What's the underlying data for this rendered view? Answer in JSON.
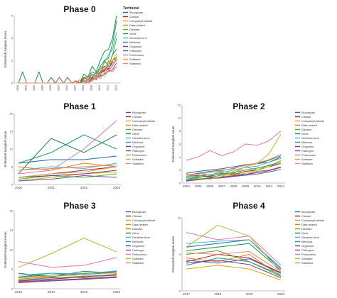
{
  "series_names": [
    "Biologicals",
    "Clinical",
    "Company/Institute",
    "Data related",
    "Disease",
    "Gene",
    "Genetics term",
    "Methods",
    "Organism",
    "Pathogen",
    "Proteomics",
    "Software",
    "Statistics"
  ],
  "series_colors": [
    "#2166ac",
    "#b2182b",
    "#d9a800",
    "#e08214",
    "#4dac26",
    "#238b45",
    "#41b6c4",
    "#1b9e77",
    "#7b3294",
    "#6a51a3",
    "#de77ae",
    "#b8b838",
    "#fb8072"
  ],
  "chart_data": [
    {
      "type": "line",
      "title": "Phase 0",
      "ylabel": "Estimated marginal mean",
      "xlabel": "",
      "legend_title": "Technical",
      "legend_position": "right",
      "x": [
        "1990",
        "1991",
        "1992",
        "1993",
        "1994",
        "1995",
        "1996",
        "1997",
        "1998",
        "1999",
        "2000",
        "2001",
        "2002",
        "2003",
        "2004",
        "2005",
        "2006",
        "2007",
        "2008",
        "2009",
        "2010",
        "2011",
        "2012",
        "2013",
        "2014"
      ],
      "x_ticks_shown": [
        "1990",
        "",
        "1992",
        "",
        "1994",
        "",
        "1996",
        "",
        "1998",
        "",
        "2000",
        "",
        "2002",
        "",
        "2004",
        "",
        "2006",
        "",
        "2008",
        "",
        "2010",
        "",
        "2012",
        "",
        "2014"
      ],
      "ylim": [
        0,
        6
      ],
      "yticks": [
        0,
        2,
        4,
        6
      ],
      "grid": false,
      "series": [
        {
          "name": "Biologicals",
          "values": [
            0,
            0,
            0,
            0,
            0,
            0,
            0,
            0,
            0,
            0,
            0,
            0,
            0,
            0,
            0,
            0,
            0,
            0.3,
            0.4,
            0.5,
            0.8,
            1.2,
            1.5,
            2.5,
            3
          ]
        },
        {
          "name": "Clinical",
          "values": [
            0,
            0,
            0,
            0,
            0,
            0,
            0,
            0,
            0,
            0,
            0,
            0,
            0,
            0,
            0.2,
            0,
            0.5,
            0.3,
            0.8,
            0.6,
            1,
            1.5,
            1.2,
            2,
            2.3
          ]
        },
        {
          "name": "Company/Institute",
          "values": [
            0,
            0,
            0,
            0,
            0,
            0,
            0,
            0,
            0,
            0,
            0,
            0,
            0,
            0,
            0,
            0,
            0.3,
            0.2,
            0.5,
            0.7,
            0.9,
            1,
            1.8,
            2,
            2.6
          ]
        },
        {
          "name": "Data related",
          "values": [
            0,
            0,
            0,
            0,
            0,
            0,
            0,
            0,
            0,
            0,
            0,
            0,
            0,
            0,
            0,
            0.3,
            0,
            0.5,
            0.8,
            0.4,
            1.5,
            1,
            2,
            1.5,
            2.2
          ]
        },
        {
          "name": "Disease",
          "values": [
            0,
            0,
            0,
            0,
            0,
            0,
            0,
            0,
            0,
            0,
            0,
            0,
            0,
            0,
            0,
            0,
            0.2,
            0,
            0.4,
            1,
            0.6,
            2,
            1.5,
            2.5,
            4
          ]
        },
        {
          "name": "Gene",
          "values": [
            0,
            1,
            0,
            0,
            0,
            1,
            0,
            0,
            0.5,
            0,
            0,
            0,
            0.5,
            0,
            0,
            0,
            0.8,
            0.5,
            1.5,
            1,
            2,
            2.8,
            3,
            4,
            6
          ]
        },
        {
          "name": "Genetics term",
          "values": [
            0,
            0,
            0,
            0,
            0,
            0,
            0,
            0,
            0,
            0,
            0,
            0,
            0,
            0,
            0,
            0,
            0,
            0.3,
            0.6,
            0.9,
            1.2,
            1.8,
            2.5,
            3,
            4.5
          ]
        },
        {
          "name": "Methods",
          "values": [
            0,
            0,
            0,
            0,
            0,
            0,
            0,
            0,
            0,
            0,
            0,
            0,
            0,
            0,
            0,
            0,
            0.4,
            0.6,
            1,
            0.8,
            1.5,
            2,
            2.2,
            3.5,
            5.5
          ]
        },
        {
          "name": "Organism",
          "values": [
            0,
            0,
            0,
            0,
            0,
            0,
            0,
            0,
            0,
            0,
            0,
            0,
            0,
            0,
            0,
            0,
            0,
            0,
            0.5,
            0.3,
            0.9,
            1.1,
            1.3,
            1.8,
            2
          ]
        },
        {
          "name": "Pathogen",
          "values": [
            0,
            0,
            0,
            0,
            0,
            0,
            0,
            0,
            0,
            0,
            0.5,
            0,
            0,
            0,
            0,
            0,
            0.2,
            0,
            0.3,
            0.5,
            0.6,
            0.8,
            1,
            1.2,
            1.8
          ]
        },
        {
          "name": "Proteomics",
          "values": [
            0,
            0,
            0,
            0,
            0,
            0,
            0,
            0,
            0,
            0,
            0,
            0,
            0,
            0,
            0,
            0,
            0,
            0.2,
            0.3,
            0.6,
            0.4,
            0.9,
            1.2,
            1,
            1.5
          ]
        },
        {
          "name": "Software",
          "values": [
            0,
            0,
            0,
            0,
            0,
            0,
            0,
            0,
            0,
            0,
            0,
            0,
            0,
            0,
            0,
            0,
            0,
            0,
            0.2,
            0.5,
            0.8,
            0.6,
            1.1,
            1.5,
            2.4
          ]
        },
        {
          "name": "Statistics",
          "values": [
            0,
            0,
            0,
            0,
            0,
            0,
            0,
            0,
            0,
            0,
            0,
            0,
            0,
            0,
            0,
            0,
            0,
            0.3,
            0.2,
            0.4,
            0.9,
            1.3,
            1,
            1.6,
            2.1
          ]
        }
      ]
    },
    {
      "type": "line",
      "title": "Phase 1",
      "ylabel": "Estimated marginal mean",
      "xlabel": "",
      "legend_title": "",
      "legend_position": "right",
      "x": [
        "2000",
        "2001",
        "2002",
        "2003"
      ],
      "x_ticks_shown": [
        "2000",
        "2001",
        "2002",
        "2003"
      ],
      "ylim": [
        0,
        20
      ],
      "yticks": [
        0,
        5,
        10,
        15,
        20
      ],
      "grid": false,
      "series": [
        {
          "name": "Biologicals",
          "values": [
            6,
            7,
            7,
            8
          ]
        },
        {
          "name": "Clinical",
          "values": [
            2,
            3,
            4,
            5
          ]
        },
        {
          "name": "Company/Institute",
          "values": [
            1,
            2,
            3,
            3.5
          ]
        },
        {
          "name": "Data related",
          "values": [
            5,
            4,
            6,
            5
          ]
        },
        {
          "name": "Disease",
          "values": [
            1.5,
            2.5,
            2,
            3
          ]
        },
        {
          "name": "Gene",
          "values": [
            3,
            13,
            9,
            14
          ]
        },
        {
          "name": "Genetics term",
          "values": [
            4,
            5,
            4.5,
            6
          ]
        },
        {
          "name": "Methods",
          "values": [
            6,
            9,
            14,
            10
          ]
        },
        {
          "name": "Organism",
          "values": [
            2,
            2.5,
            3,
            4
          ]
        },
        {
          "name": "Pathogen",
          "values": [
            1,
            1.5,
            2.5,
            2
          ]
        },
        {
          "name": "Proteomics",
          "values": [
            3,
            4,
            10,
            18
          ]
        },
        {
          "name": "Software",
          "values": [
            2,
            3,
            3.5,
            5
          ]
        },
        {
          "name": "Statistics",
          "values": [
            4,
            4.5,
            5,
            5.5
          ]
        }
      ]
    },
    {
      "type": "line",
      "title": "Phase 2",
      "ylabel": "Estimated marginal mean",
      "xlabel": "",
      "legend_title": "",
      "legend_position": "right",
      "x": [
        "2004",
        "2005",
        "2006",
        "2007",
        "2008",
        "2009",
        "2010",
        "2011",
        "2012"
      ],
      "x_ticks_shown": [
        "2004",
        "2005",
        "2006",
        "2007",
        "2008",
        "2009",
        "2010",
        "2011",
        "2012"
      ],
      "ylim": [
        0,
        12
      ],
      "yticks": [
        0,
        2,
        4,
        6,
        8,
        10,
        12
      ],
      "grid": false,
      "series": [
        {
          "name": "Biologicals",
          "values": [
            1.5,
            1.8,
            2,
            2.2,
            2.5,
            2.8,
            3,
            3.2,
            4
          ]
        },
        {
          "name": "Clinical",
          "values": [
            1,
            1.2,
            1,
            1.5,
            1.3,
            1.8,
            2,
            2.5,
            3
          ]
        },
        {
          "name": "Company/Institute",
          "values": [
            0.5,
            0.8,
            0.6,
            1,
            1.2,
            1.5,
            2,
            2.5,
            3.5
          ]
        },
        {
          "name": "Data related",
          "values": [
            1,
            1.5,
            1.2,
            1.8,
            1.5,
            2.5,
            2,
            2.8,
            3
          ]
        },
        {
          "name": "Disease",
          "values": [
            0.8,
            1,
            0.9,
            1.2,
            1.5,
            1.3,
            1.8,
            2,
            2.5
          ]
        },
        {
          "name": "Gene",
          "values": [
            1.2,
            1.5,
            1.8,
            2,
            2.2,
            2.8,
            3,
            3.5,
            4.2
          ]
        },
        {
          "name": "Genetics term",
          "values": [
            1,
            1.1,
            1.3,
            1.6,
            2,
            2.4,
            2.6,
            3.2,
            3.8
          ]
        },
        {
          "name": "Methods",
          "values": [
            0.6,
            0.9,
            1.1,
            1.4,
            1.6,
            2,
            2.3,
            2.7,
            3.3
          ]
        },
        {
          "name": "Organism",
          "values": [
            0.4,
            0.6,
            0.8,
            0.9,
            1.1,
            1.3,
            1.6,
            1.9,
            2.4
          ]
        },
        {
          "name": "Pathogen",
          "values": [
            0.3,
            0.5,
            0.7,
            0.8,
            1,
            1.2,
            1.4,
            1.7,
            2.1
          ]
        },
        {
          "name": "Proteomics",
          "values": [
            3.5,
            4,
            5,
            4.2,
            4.8,
            6,
            5.8,
            6.5,
            8
          ]
        },
        {
          "name": "Software",
          "values": [
            0.5,
            0.7,
            0.6,
            1,
            1.8,
            2.5,
            3,
            4.5,
            7.5
          ]
        },
        {
          "name": "Statistics",
          "values": [
            1.3,
            1.4,
            1.6,
            1.9,
            2.3,
            2.7,
            3.1,
            3.6,
            4.4
          ]
        }
      ]
    },
    {
      "type": "line",
      "title": "Phase 3",
      "ylabel": "Estimated marginal mean",
      "xlabel": "",
      "legend_title": "",
      "legend_position": "right",
      "x": [
        "2013",
        "2014",
        "2015",
        "2016"
      ],
      "x_ticks_shown": [
        "2013",
        "2014",
        "2015",
        "2016"
      ],
      "ylim": [
        0,
        20
      ],
      "yticks": [
        0,
        5,
        10,
        15,
        20
      ],
      "grid": false,
      "series": [
        {
          "name": "Biologicals",
          "values": [
            3,
            4,
            3.5,
            4.5
          ]
        },
        {
          "name": "Clinical",
          "values": [
            2,
            2.5,
            3,
            3.5
          ]
        },
        {
          "name": "Company/Institute",
          "values": [
            1.5,
            2,
            2.5,
            3
          ]
        },
        {
          "name": "Data related",
          "values": [
            2.5,
            3,
            2.8,
            3.8
          ]
        },
        {
          "name": "Disease",
          "values": [
            3,
            3.5,
            4,
            4.2
          ]
        },
        {
          "name": "Gene",
          "values": [
            4,
            3,
            4.5,
            4
          ]
        },
        {
          "name": "Genetics term",
          "values": [
            3.5,
            4,
            3.8,
            4.6
          ]
        },
        {
          "name": "Methods",
          "values": [
            2.2,
            2.8,
            3.2,
            3.6
          ]
        },
        {
          "name": "Organism",
          "values": [
            1.8,
            2.2,
            2.6,
            3.1
          ]
        },
        {
          "name": "Pathogen",
          "values": [
            1.6,
            2,
            2.4,
            2.9
          ]
        },
        {
          "name": "Proteomics",
          "values": [
            7,
            5.5,
            6,
            8
          ]
        },
        {
          "name": "Software",
          "values": [
            5.5,
            9,
            13,
            9.5
          ]
        },
        {
          "name": "Statistics",
          "values": [
            2.8,
            3.2,
            3.6,
            4.1
          ]
        }
      ]
    },
    {
      "type": "line",
      "title": "Phase 4",
      "ylabel": "Estimated marginal mean",
      "xlabel": "",
      "legend_title": "",
      "legend_position": "right",
      "x": [
        "2017",
        "2018",
        "2019",
        "2020"
      ],
      "x_ticks_shown": [
        "2017",
        "2018",
        "2019",
        "2020"
      ],
      "ylim": [
        0,
        10
      ],
      "yticks": [
        0,
        5,
        10
      ],
      "grid": false,
      "series": [
        {
          "name": "Biologicals",
          "values": [
            6,
            6.5,
            7,
            3
          ]
        },
        {
          "name": "Clinical",
          "values": [
            4,
            5,
            4.5,
            2.5
          ]
        },
        {
          "name": "Company/Institute",
          "values": [
            3,
            3.5,
            3,
            1.5
          ]
        },
        {
          "name": "Data related",
          "values": [
            4.5,
            4,
            5,
            2
          ]
        },
        {
          "name": "Disease",
          "values": [
            5,
            5.5,
            4,
            2.2
          ]
        },
        {
          "name": "Gene",
          "values": [
            5.5,
            6,
            6.5,
            2.8
          ]
        },
        {
          "name": "Genetics term",
          "values": [
            6.5,
            6.8,
            7,
            3.2
          ]
        },
        {
          "name": "Methods",
          "values": [
            3.5,
            4.5,
            4,
            2
          ]
        },
        {
          "name": "Organism",
          "values": [
            3.8,
            4.2,
            3.6,
            1.8
          ]
        },
        {
          "name": "Pathogen",
          "values": [
            4.2,
            3.8,
            4.4,
            2.4
          ]
        },
        {
          "name": "Proteomics",
          "values": [
            8,
            7,
            7.5,
            3.5
          ]
        },
        {
          "name": "Software",
          "values": [
            6,
            9,
            7.5,
            2.5
          ]
        },
        {
          "name": "Statistics",
          "values": [
            5.2,
            5,
            5.4,
            2.6
          ]
        }
      ]
    }
  ]
}
